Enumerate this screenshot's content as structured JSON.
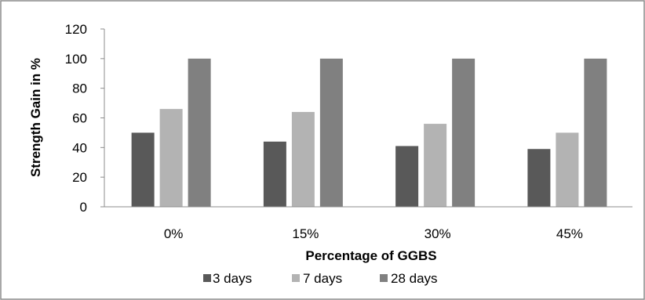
{
  "chart_data": {
    "type": "bar",
    "title": "",
    "xlabel": "Percentage of GGBS",
    "ylabel": "Strength Gain in %",
    "categories": [
      "0%",
      "15%",
      "30%",
      "45%"
    ],
    "series": [
      {
        "name": "3 days",
        "values": [
          50,
          44,
          41,
          39
        ],
        "color": "#595959"
      },
      {
        "name": "7 days",
        "values": [
          66,
          64,
          56,
          50
        ],
        "color": "#b3b3b3"
      },
      {
        "name": "28 days",
        "values": [
          100,
          100,
          100,
          100
        ],
        "color": "#808080"
      }
    ],
    "ylim": [
      0,
      120
    ],
    "yticks": [
      0,
      20,
      40,
      60,
      80,
      100,
      120
    ],
    "grid": false,
    "legend_position": "bottom"
  }
}
